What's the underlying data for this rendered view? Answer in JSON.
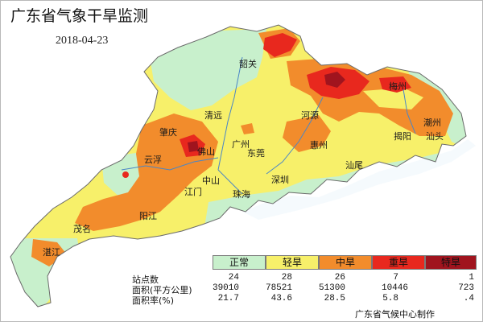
{
  "header": {
    "title": "广东省气象干旱监测",
    "date": "2018-04-23"
  },
  "map": {
    "cities": [
      {
        "id": "shaoguan",
        "name": "韶关"
      },
      {
        "id": "meizhou",
        "name": "梅州"
      },
      {
        "id": "qingyuan",
        "name": "清远"
      },
      {
        "id": "heyuan",
        "name": "河源"
      },
      {
        "id": "chaozhou",
        "name": "潮州"
      },
      {
        "id": "zhaoqing",
        "name": "肇庆"
      },
      {
        "id": "guangzhou",
        "name": "广州"
      },
      {
        "id": "jieyang",
        "name": "揭阳"
      },
      {
        "id": "shantou",
        "name": "汕头"
      },
      {
        "id": "yunfu",
        "name": "云浮"
      },
      {
        "id": "foshan",
        "name": "佛山"
      },
      {
        "id": "dongguan",
        "name": "东莞"
      },
      {
        "id": "huizhou",
        "name": "惠州"
      },
      {
        "id": "shanwei",
        "name": "汕尾"
      },
      {
        "id": "shenzhen",
        "name": "深圳"
      },
      {
        "id": "zhongshan",
        "name": "中山"
      },
      {
        "id": "jiangmen",
        "name": "江门"
      },
      {
        "id": "zhuhai",
        "name": "珠海"
      },
      {
        "id": "yangjiang",
        "name": "阳江"
      },
      {
        "id": "maoming",
        "name": "茂名"
      },
      {
        "id": "zhanjiang",
        "name": "湛江"
      }
    ]
  },
  "legend": {
    "classes": [
      {
        "label": "正常",
        "color": "#c8f0cc"
      },
      {
        "label": "轻旱",
        "color": "#f7f06a"
      },
      {
        "label": "中旱",
        "color": "#f28c2c"
      },
      {
        "label": "重旱",
        "color": "#e8281e"
      },
      {
        "label": "特旱",
        "color": "#a0141e"
      }
    ]
  },
  "stats": {
    "labels": {
      "stations": "站点数",
      "area": "面积(平方公里)",
      "ratio": "面积率(%)"
    },
    "stations": [
      "24",
      "28",
      "26",
      "7",
      "1"
    ],
    "area": [
      "39010",
      "78521",
      "51300",
      "10446",
      "723"
    ],
    "ratio": [
      "21.7",
      "43.6",
      "28.5",
      "5.8",
      ".4"
    ]
  },
  "footer": {
    "credit": "广东省气候中心制作"
  }
}
